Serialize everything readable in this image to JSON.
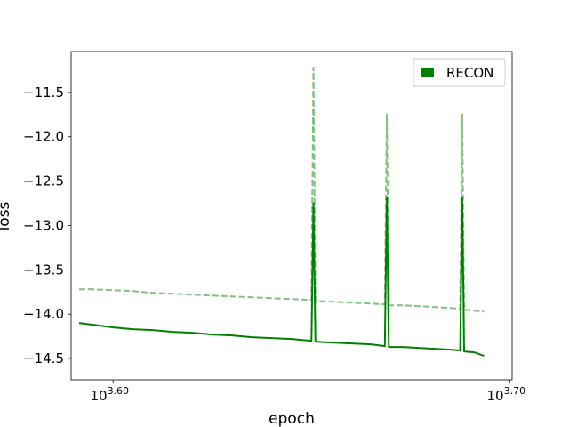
{
  "chart_data": {
    "type": "line",
    "title": "",
    "xlabel": "epoch",
    "ylabel": "loss",
    "x_scale": "log10",
    "xlim": [
      3.5894,
      3.7006
    ],
    "ylim": [
      -14.74,
      -11.04
    ],
    "x_ticks": [
      {
        "value": 3.6,
        "base": "10",
        "exp": "3.60"
      },
      {
        "value": 3.7,
        "base": "10",
        "exp": "3.70"
      }
    ],
    "y_ticks": [
      {
        "value": -11.5,
        "label": "−11.5"
      },
      {
        "value": -12.0,
        "label": "−12.0"
      },
      {
        "value": -12.5,
        "label": "−12.5"
      },
      {
        "value": -13.0,
        "label": "−13.0"
      },
      {
        "value": -13.5,
        "label": "−13.5"
      },
      {
        "value": -14.0,
        "label": "−14.0"
      },
      {
        "value": -14.5,
        "label": "−14.5"
      }
    ],
    "grid": false,
    "legend": {
      "position": "top-right",
      "entries": [
        "RECON"
      ]
    },
    "colors": {
      "train": "#008000",
      "val": "#80c080"
    },
    "series": [
      {
        "name": "RECON",
        "role": "train",
        "style": "solid",
        "x": [
          3.5914,
          3.595,
          3.6,
          3.605,
          3.61,
          3.615,
          3.62,
          3.625,
          3.63,
          3.635,
          3.64,
          3.645,
          3.65,
          3.6505,
          3.651,
          3.655,
          3.66,
          3.665,
          3.6685,
          3.669,
          3.6695,
          3.673,
          3.677,
          3.681,
          3.685,
          3.6875,
          3.688,
          3.6885,
          3.691,
          3.6935
        ],
        "y": [
          -14.1,
          -14.12,
          -14.15,
          -14.17,
          -14.18,
          -14.2,
          -14.21,
          -14.23,
          -14.24,
          -14.26,
          -14.27,
          -14.28,
          -14.3,
          -12.75,
          -14.31,
          -14.32,
          -14.33,
          -14.34,
          -14.36,
          -12.68,
          -14.37,
          -14.37,
          -14.38,
          -14.39,
          -14.4,
          -14.41,
          -12.68,
          -14.42,
          -14.43,
          -14.47
        ]
      },
      {
        "role": "val",
        "style": "dashed",
        "x": [
          3.5914,
          3.595,
          3.6,
          3.605,
          3.61,
          3.615,
          3.62,
          3.625,
          3.63,
          3.635,
          3.64,
          3.645,
          3.65,
          3.6505,
          3.651,
          3.655,
          3.66,
          3.665,
          3.6685,
          3.669,
          3.6695,
          3.673,
          3.677,
          3.681,
          3.685,
          3.6875,
          3.688,
          3.6885,
          3.691,
          3.6935
        ],
        "y": [
          -13.72,
          -13.72,
          -13.73,
          -13.74,
          -13.76,
          -13.77,
          -13.78,
          -13.79,
          -13.8,
          -13.81,
          -13.82,
          -13.83,
          -13.84,
          -11.22,
          -13.85,
          -13.86,
          -13.87,
          -13.88,
          -13.89,
          -11.75,
          -13.9,
          -13.9,
          -13.91,
          -13.92,
          -13.93,
          -13.94,
          -11.75,
          -13.95,
          -13.96,
          -13.97
        ]
      }
    ]
  }
}
